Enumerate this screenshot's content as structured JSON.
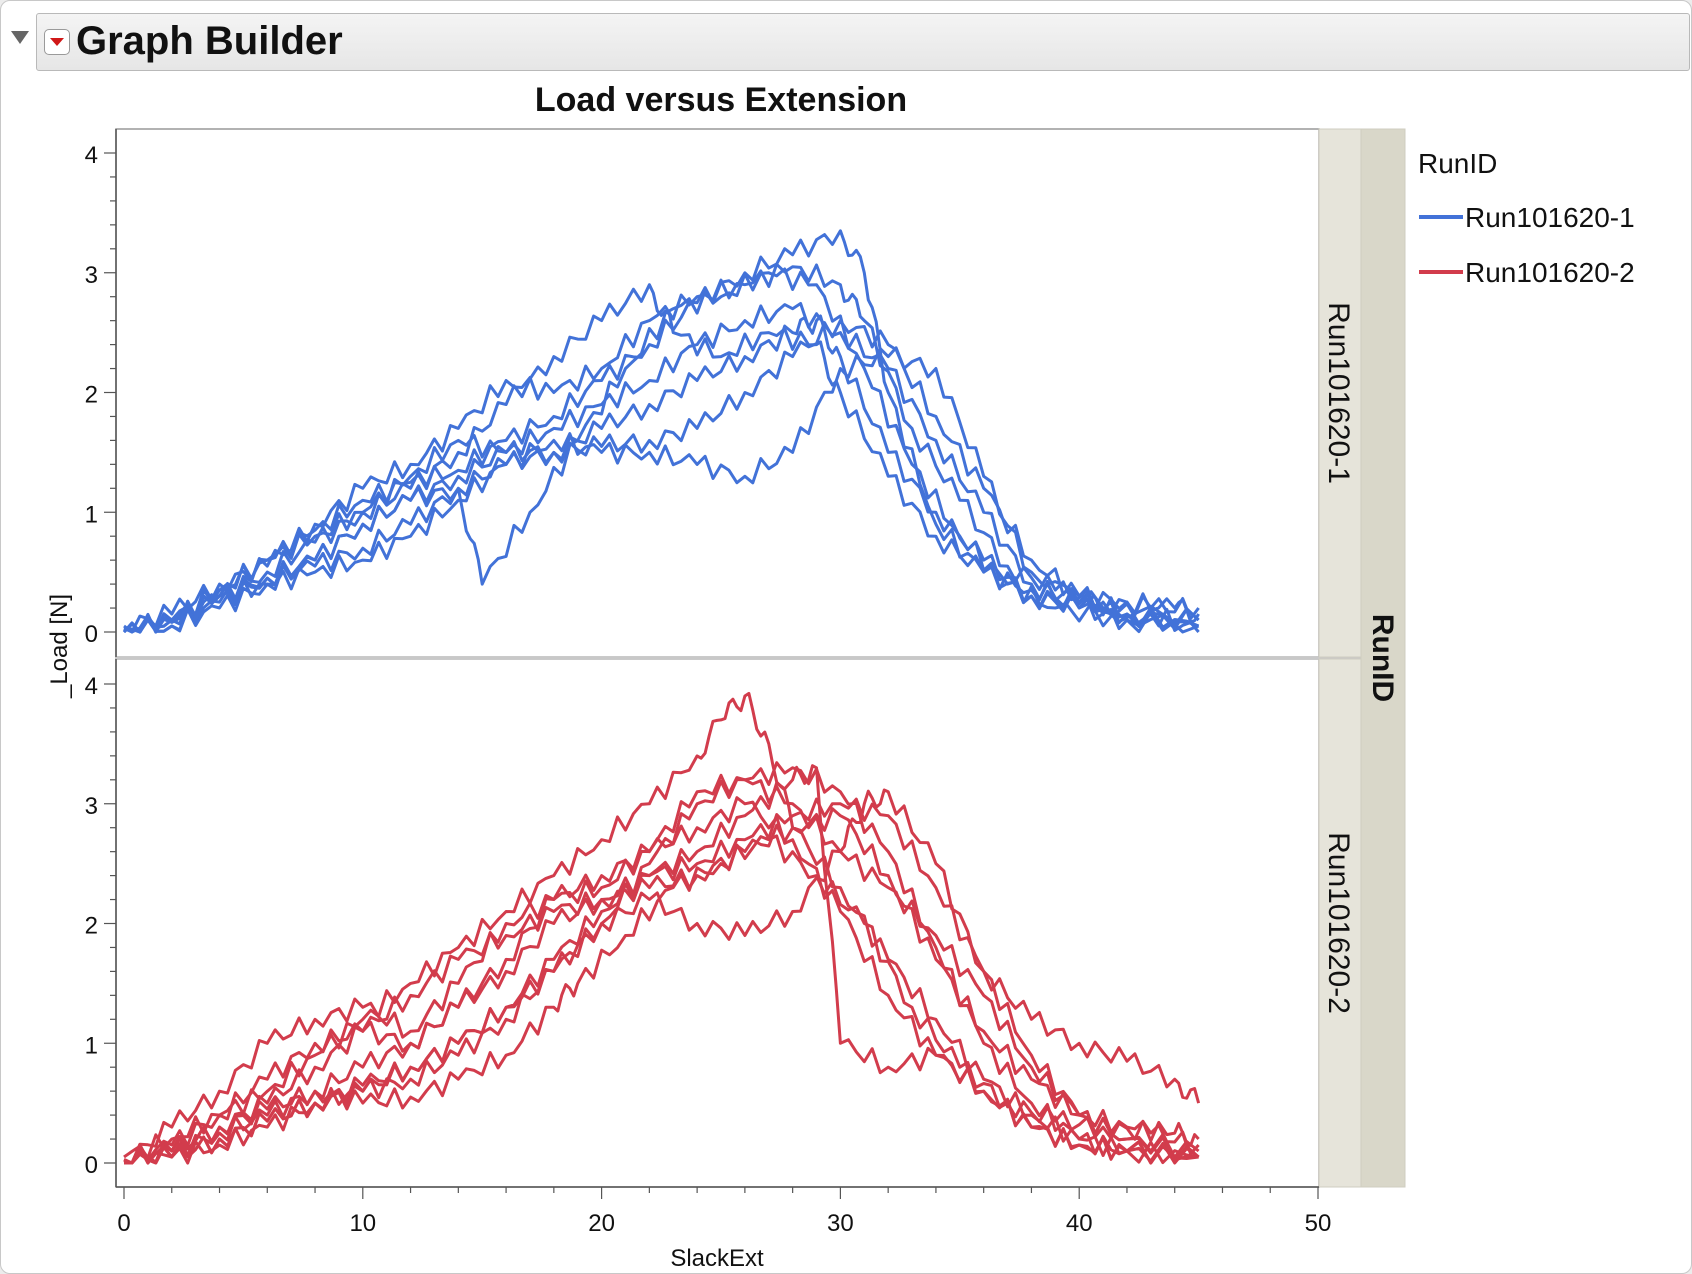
{
  "window": {
    "title": "Graph Builder"
  },
  "legend": {
    "title": "RunID",
    "items": [
      {
        "label": "Run101620-1",
        "color": "#4272d8"
      },
      {
        "label": "Run101620-2",
        "color": "#d23c4c"
      }
    ]
  },
  "icons": {
    "disclosure": "disclosure-triangle-icon",
    "menu": "red-triangle-menu-icon"
  },
  "chart_data": {
    "type": "line",
    "title": "Load versus Extension",
    "xlabel": "SlackExt",
    "ylabel": "_Load [N]",
    "group_label": "RunID",
    "xlim": [
      0,
      50
    ],
    "ylim": [
      -0.1,
      4.2
    ],
    "xticks": [
      0,
      10,
      20,
      30,
      40,
      50
    ],
    "yticks": [
      0,
      1,
      2,
      3,
      4
    ],
    "grid": false,
    "legend_position": "right",
    "panels": [
      {
        "name": "Run101620-1",
        "color": "#4272d8",
        "series": [
          {
            "x": [
              0,
              2,
              4,
              6,
              8,
              10,
              12,
              14,
              16,
              18,
              20,
              22,
              24,
              26,
              28,
              30,
              31,
              32,
              34,
              36,
              38,
              40,
              42,
              44,
              45
            ],
            "y": [
              0.02,
              0.1,
              0.35,
              0.6,
              0.85,
              1.1,
              1.25,
              1.35,
              1.6,
              1.8,
              2.1,
              2.4,
              2.75,
              3.0,
              3.15,
              3.35,
              3.0,
              2.0,
              0.9,
              0.5,
              0.35,
              0.3,
              0.25,
              0.2,
              0.15
            ]
          },
          {
            "x": [
              0,
              2,
              4,
              6,
              8,
              10,
              12,
              14,
              16,
              18,
              20,
              22,
              24,
              26,
              28,
              30,
              31,
              33,
              35,
              37,
              39,
              41,
              43,
              45
            ],
            "y": [
              0.05,
              0.15,
              0.4,
              0.55,
              0.9,
              1.2,
              1.4,
              1.7,
              2.1,
              2.0,
              2.2,
              2.6,
              2.8,
              2.9,
              3.05,
              2.9,
              2.6,
              1.7,
              1.1,
              0.55,
              0.35,
              0.25,
              0.2,
              0.2
            ]
          },
          {
            "x": [
              0,
              2,
              4,
              6,
              8,
              10,
              12,
              14,
              16,
              18,
              20,
              22,
              23,
              25,
              27,
              29,
              30,
              32,
              34,
              36,
              38,
              40,
              42,
              45
            ],
            "y": [
              0.0,
              0.1,
              0.3,
              0.5,
              0.75,
              1.0,
              1.2,
              1.5,
              1.9,
              2.3,
              2.6,
              2.9,
              2.5,
              2.3,
              2.5,
              2.4,
              2.0,
              1.3,
              0.8,
              0.5,
              0.3,
              0.25,
              0.15,
              0.1
            ]
          },
          {
            "x": [
              0,
              2,
              4,
              6,
              8,
              10,
              12,
              14,
              16,
              18,
              20,
              22,
              24,
              26,
              28,
              30,
              32,
              34,
              36,
              38,
              40,
              42,
              45
            ],
            "y": [
              0.0,
              0.05,
              0.25,
              0.45,
              0.6,
              0.9,
              1.1,
              1.2,
              1.4,
              1.5,
              1.55,
              1.6,
              1.7,
              2.0,
              2.3,
              2.6,
              2.4,
              1.8,
              1.2,
              0.6,
              0.3,
              0.15,
              0.05
            ]
          },
          {
            "x": [
              0,
              2,
              4,
              6,
              8,
              10,
              12,
              14,
              16,
              18,
              20,
              22,
              24,
              26,
              28,
              30,
              32,
              34,
              36,
              38,
              41,
              45
            ],
            "y": [
              0.02,
              0.08,
              0.3,
              0.4,
              0.5,
              0.6,
              0.8,
              1.1,
              1.4,
              1.6,
              1.5,
              1.5,
              1.4,
              1.3,
              1.5,
              2.2,
              2.3,
              2.2,
              1.3,
              0.5,
              0.2,
              0.05
            ]
          },
          {
            "x": [
              0,
              2,
              4,
              6,
              8,
              10,
              12,
              14,
              16,
              18,
              20,
              22,
              24,
              26,
              28,
              30,
              32,
              34,
              36,
              38,
              40,
              42,
              45
            ],
            "y": [
              0.03,
              0.1,
              0.35,
              0.6,
              0.8,
              1.0,
              1.3,
              1.6,
              1.5,
              1.7,
              1.9,
              2.1,
              2.4,
              2.6,
              2.7,
              2.5,
              2.2,
              1.6,
              1.0,
              0.4,
              0.2,
              0.1,
              0.1
            ]
          },
          {
            "x": [
              0,
              2,
              4,
              6,
              8,
              10,
              12,
              14,
              16,
              18,
              20,
              22,
              24,
              26,
              28,
              29,
              30,
              32,
              34,
              36,
              38,
              40,
              43,
              45
            ],
            "y": [
              0.0,
              0.05,
              0.2,
              0.4,
              0.6,
              0.9,
              1.1,
              1.3,
              1.5,
              1.5,
              1.7,
              1.9,
              2.1,
              2.3,
              2.5,
              2.6,
              2.3,
              1.5,
              1.0,
              0.6,
              0.3,
              0.2,
              0.15,
              0.0
            ]
          },
          {
            "x": [
              0,
              2,
              4,
              6,
              8,
              10,
              12,
              14,
              15,
              17,
              19,
              21,
              23,
              25,
              27,
              29,
              31,
              33,
              35,
              37,
              39,
              42,
              45
            ],
            "y": [
              0.0,
              0.1,
              0.3,
              0.45,
              0.55,
              0.7,
              0.9,
              1.2,
              0.4,
              1.0,
              1.6,
              2.2,
              2.7,
              2.8,
              3.0,
              2.9,
              2.2,
              1.4,
              0.8,
              0.4,
              0.2,
              0.1,
              0.05
            ]
          }
        ]
      },
      {
        "name": "Run101620-2",
        "color": "#d23c4c",
        "series": [
          {
            "x": [
              0,
              2,
              4,
              6,
              8,
              10,
              12,
              14,
              16,
              18,
              20,
              22,
              24,
              25,
              26,
              27,
              28,
              30,
              32,
              34,
              36,
              38,
              40,
              42,
              45
            ],
            "y": [
              0.05,
              0.2,
              0.4,
              0.6,
              0.9,
              1.2,
              1.5,
              1.8,
              2.1,
              2.4,
              2.7,
              3.0,
              3.4,
              3.7,
              3.9,
              3.5,
              2.8,
              2.3,
              1.7,
              1.2,
              0.7,
              0.4,
              0.2,
              0.1,
              0.05
            ]
          },
          {
            "x": [
              0,
              2,
              4,
              6,
              8,
              10,
              12,
              14,
              16,
              18,
              20,
              22,
              24,
              26,
              28,
              30,
              32,
              34,
              36,
              38,
              40,
              42,
              45
            ],
            "y": [
              0.0,
              0.3,
              0.6,
              1.0,
              1.2,
              1.3,
              1.1,
              1.5,
              2.0,
              2.2,
              2.3,
              2.6,
              3.1,
              3.2,
              3.3,
              3.1,
              2.6,
              1.8,
              1.0,
              0.5,
              0.2,
              0.1,
              0.05
            ]
          },
          {
            "x": [
              0,
              2,
              4,
              6,
              8,
              10,
              12,
              14,
              16,
              18,
              20,
              22,
              24,
              26,
              28,
              29,
              30,
              32,
              34,
              36,
              38,
              40,
              42,
              45
            ],
            "y": [
              0.0,
              0.1,
              0.3,
              0.5,
              0.8,
              1.1,
              1.4,
              1.7,
              1.9,
              2.1,
              2.2,
              2.4,
              2.6,
              2.9,
              3.2,
              3.3,
              1.0,
              0.8,
              0.9,
              0.6,
              0.3,
              0.15,
              0.1,
              0.05
            ]
          },
          {
            "x": [
              0,
              2,
              4,
              6,
              8,
              10,
              12,
              14,
              16,
              18,
              20,
              22,
              24,
              26,
              28,
              30,
              32,
              34,
              36,
              38,
              40,
              42,
              45
            ],
            "y": [
              0.0,
              0.05,
              0.2,
              0.35,
              0.5,
              0.6,
              0.8,
              1.0,
              1.3,
              1.7,
              2.1,
              2.4,
              2.5,
              2.7,
              2.9,
              3.0,
              2.9,
              2.3,
              1.6,
              0.9,
              0.4,
              0.2,
              0.1
            ]
          },
          {
            "x": [
              0,
              2,
              4,
              6,
              8,
              10,
              12,
              14,
              16,
              18,
              20,
              22,
              24,
              26,
              28,
              30,
              32,
              34,
              36,
              38,
              40,
              42,
              44,
              45
            ],
            "y": [
              0.02,
              0.1,
              0.25,
              0.4,
              0.6,
              0.8,
              1.0,
              1.3,
              1.6,
              2.0,
              2.2,
              2.3,
              2.4,
              2.6,
              2.8,
              2.9,
              2.4,
              1.7,
              1.1,
              0.7,
              0.4,
              0.3,
              0.25,
              0.2
            ]
          },
          {
            "x": [
              0,
              2,
              4,
              6,
              8,
              10,
              12,
              14,
              16,
              18,
              20,
              22,
              24,
              26,
              28,
              30,
              31,
              32,
              34,
              36,
              38,
              40,
              42,
              44,
              45
            ],
            "y": [
              0.03,
              0.05,
              0.15,
              0.3,
              0.5,
              0.6,
              0.7,
              0.9,
              1.2,
              1.6,
              2.0,
              2.2,
              2.0,
              1.9,
              2.1,
              2.6,
              3.0,
              3.1,
              2.5,
              1.6,
              1.2,
              1.0,
              0.85,
              0.7,
              0.5
            ]
          },
          {
            "x": [
              0,
              2,
              4,
              6,
              8,
              10,
              12,
              14,
              16,
              18,
              20,
              22,
              24,
              26,
              28,
              30,
              32,
              34,
              36,
              38,
              40,
              42,
              45
            ],
            "y": [
              0.0,
              0.05,
              0.2,
              0.35,
              0.5,
              0.65,
              0.8,
              1.0,
              1.3,
              1.6,
              2.0,
              2.5,
              3.0,
              3.2,
              3.0,
              2.6,
              2.3,
              1.9,
              1.4,
              0.8,
              0.4,
              0.2,
              0.05
            ]
          },
          {
            "x": [
              0,
              2,
              4,
              6,
              8,
              10,
              12,
              14,
              16,
              18,
              19,
              21,
              23,
              25,
              27,
              29,
              31,
              33,
              35,
              37,
              39,
              41,
              43,
              45
            ],
            "y": [
              0.0,
              0.1,
              0.3,
              0.45,
              0.6,
              0.5,
              0.55,
              0.7,
              0.9,
              1.3,
              1.5,
              1.9,
              2.3,
              2.5,
              2.7,
              2.4,
              2.0,
              1.3,
              0.8,
              0.5,
              0.35,
              0.3,
              0.25,
              0.15
            ]
          },
          {
            "x": [
              0,
              2,
              4,
              6,
              8,
              10,
              12,
              14,
              16,
              18,
              20,
              22,
              24,
              26,
              28,
              30,
              32,
              34,
              36,
              38,
              40,
              42,
              45
            ],
            "y": [
              0.02,
              0.15,
              0.4,
              0.7,
              1.0,
              1.1,
              1.0,
              1.3,
              1.7,
              2.2,
              2.4,
              2.6,
              2.8,
              3.0,
              2.7,
              2.1,
              1.4,
              0.9,
              0.6,
              0.3,
              0.15,
              0.1,
              0.05
            ]
          }
        ]
      }
    ]
  }
}
